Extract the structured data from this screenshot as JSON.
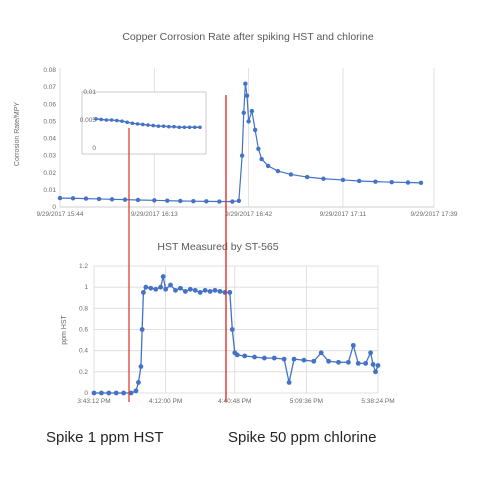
{
  "chart_data": [
    {
      "type": "scatter",
      "title": "Copper Corrosion Rate after spiking HST and chlorine",
      "ylabel": "Corrosion Rate/MPY",
      "xlabel": "",
      "ylim": [
        0,
        0.08
      ],
      "y_ticks": [
        "0",
        "0.01",
        "0.02",
        "0.03",
        "0.04",
        "0.05",
        "0.06",
        "0.07",
        "0.08"
      ],
      "x_ticks": [
        "9/29/2017 15:44",
        "9/29/2017 16:13",
        "9/29/2017 16:42",
        "9/29/2017 17:11",
        "9/29/2017 17:39"
      ],
      "grid": "vertical",
      "series": [
        {
          "color": "#4472c4",
          "points": [
            {
              "t": "15:44",
              "y": 0.0052
            },
            {
              "t": "15:48",
              "y": 0.0051
            },
            {
              "t": "15:52",
              "y": 0.0049
            },
            {
              "t": "15:56",
              "y": 0.0047
            },
            {
              "t": "16:00",
              "y": 0.0045
            },
            {
              "t": "16:04",
              "y": 0.0043
            },
            {
              "t": "16:08",
              "y": 0.0041
            },
            {
              "t": "16:13",
              "y": 0.0039
            },
            {
              "t": "16:17",
              "y": 0.0037
            },
            {
              "t": "16:21",
              "y": 0.0035
            },
            {
              "t": "16:25",
              "y": 0.0034
            },
            {
              "t": "16:29",
              "y": 0.0033
            },
            {
              "t": "16:33",
              "y": 0.0032
            },
            {
              "t": "16:37",
              "y": 0.0032
            },
            {
              "t": "16:39",
              "y": 0.0036
            },
            {
              "t": "16:40",
              "y": 0.03
            },
            {
              "t": "16:40.5",
              "y": 0.055
            },
            {
              "t": "16:41",
              "y": 0.072
            },
            {
              "t": "16:41.5",
              "y": 0.065
            },
            {
              "t": "16:42",
              "y": 0.05
            },
            {
              "t": "16:43",
              "y": 0.056
            },
            {
              "t": "16:44",
              "y": 0.045
            },
            {
              "t": "16:45",
              "y": 0.034
            },
            {
              "t": "16:46",
              "y": 0.028
            },
            {
              "t": "16:48",
              "y": 0.024
            },
            {
              "t": "16:51",
              "y": 0.021
            },
            {
              "t": "16:55",
              "y": 0.019
            },
            {
              "t": "17:00",
              "y": 0.0175
            },
            {
              "t": "17:05",
              "y": 0.0165
            },
            {
              "t": "17:11",
              "y": 0.0158
            },
            {
              "t": "17:16",
              "y": 0.0152
            },
            {
              "t": "17:21",
              "y": 0.0148
            },
            {
              "t": "17:26",
              "y": 0.0145
            },
            {
              "t": "17:31",
              "y": 0.0143
            },
            {
              "t": "17:35",
              "y": 0.0141
            }
          ]
        }
      ],
      "inset": {
        "y_ticks": [
          "0.01",
          "0.005",
          "0"
        ],
        "ylim": [
          0,
          0.01
        ],
        "values": [
          0.0052,
          0.0051,
          0.005,
          0.005,
          0.0049,
          0.0048,
          0.0046,
          0.0044,
          0.0043,
          0.0042,
          0.0041,
          0.004,
          0.0039,
          0.0039,
          0.0038,
          0.0038,
          0.0037,
          0.0037,
          0.0037,
          0.0037,
          0.0037
        ]
      }
    },
    {
      "type": "scatter",
      "title": "HST Measured by ST-565",
      "ylabel": "ppm HST",
      "xlabel": "",
      "ylim": [
        0,
        1.2
      ],
      "y_ticks": [
        "0",
        "0.2",
        "0.4",
        "0.6",
        "0.8",
        "1",
        "1.2"
      ],
      "x_ticks": [
        "3:43:12 PM",
        "4:12:00 PM",
        "4:40:48 PM",
        "5:09:36 PM",
        "5:38:24 PM"
      ],
      "grid": "both",
      "series": [
        {
          "color": "#4472c4",
          "points": [
            {
              "t": "3:43",
              "y": 0
            },
            {
              "t": "3:46",
              "y": 0
            },
            {
              "t": "3:49",
              "y": 0
            },
            {
              "t": "3:52",
              "y": 0
            },
            {
              "t": "3:55",
              "y": 0
            },
            {
              "t": "3:58",
              "y": 0
            },
            {
              "t": "4:00",
              "y": 0.02
            },
            {
              "t": "4:01",
              "y": 0.1
            },
            {
              "t": "4:02",
              "y": 0.25
            },
            {
              "t": "4:02.5",
              "y": 0.6
            },
            {
              "t": "4:03",
              "y": 0.95
            },
            {
              "t": "4:04",
              "y": 1.0
            },
            {
              "t": "4:06",
              "y": 0.99
            },
            {
              "t": "4:08",
              "y": 0.98
            },
            {
              "t": "4:10",
              "y": 1.0
            },
            {
              "t": "4:11",
              "y": 1.1
            },
            {
              "t": "4:12",
              "y": 0.98
            },
            {
              "t": "4:14",
              "y": 1.02
            },
            {
              "t": "4:16",
              "y": 0.97
            },
            {
              "t": "4:18",
              "y": 0.99
            },
            {
              "t": "4:20",
              "y": 0.96
            },
            {
              "t": "4:22",
              "y": 0.98
            },
            {
              "t": "4:24",
              "y": 0.97
            },
            {
              "t": "4:26",
              "y": 0.95
            },
            {
              "t": "4:28",
              "y": 0.97
            },
            {
              "t": "4:30",
              "y": 0.96
            },
            {
              "t": "4:32",
              "y": 0.97
            },
            {
              "t": "4:34",
              "y": 0.96
            },
            {
              "t": "4:36",
              "y": 0.95
            },
            {
              "t": "4:38",
              "y": 0.95
            },
            {
              "t": "4:39",
              "y": 0.6
            },
            {
              "t": "4:40",
              "y": 0.38
            },
            {
              "t": "4:41",
              "y": 0.36
            },
            {
              "t": "4:44",
              "y": 0.35
            },
            {
              "t": "4:48",
              "y": 0.34
            },
            {
              "t": "4:52",
              "y": 0.33
            },
            {
              "t": "4:56",
              "y": 0.33
            },
            {
              "t": "5:00",
              "y": 0.32
            },
            {
              "t": "5:02",
              "y": 0.1
            },
            {
              "t": "5:04",
              "y": 0.32
            },
            {
              "t": "5:08",
              "y": 0.31
            },
            {
              "t": "5:12",
              "y": 0.3
            },
            {
              "t": "5:15",
              "y": 0.38
            },
            {
              "t": "5:18",
              "y": 0.3
            },
            {
              "t": "5:22",
              "y": 0.29
            },
            {
              "t": "5:26",
              "y": 0.29
            },
            {
              "t": "5:28",
              "y": 0.45
            },
            {
              "t": "5:30",
              "y": 0.28
            },
            {
              "t": "5:33",
              "y": 0.28
            },
            {
              "t": "5:35",
              "y": 0.38
            },
            {
              "t": "5:36",
              "y": 0.27
            },
            {
              "t": "5:37",
              "y": 0.2
            },
            {
              "t": "5:38",
              "y": 0.26
            }
          ]
        }
      ]
    }
  ],
  "annotations": {
    "spike_hst": "Spike 1 ppm HST",
    "spike_chlorine": "Spike 50 ppm chlorine",
    "marker_color": "#e0302a"
  }
}
